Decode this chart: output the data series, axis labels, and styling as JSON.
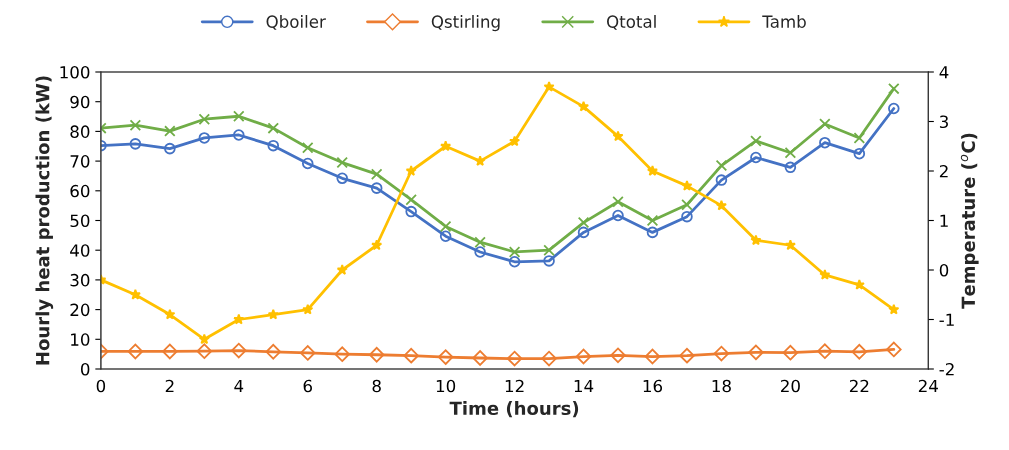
{
  "chart_data": {
    "type": "line",
    "xlabel": "Time (hours)",
    "ylabel": "Hourly heat production (kW)",
    "y2label": "Temperature ($^{o}$C)",
    "x": [
      0,
      1,
      2,
      3,
      4,
      5,
      6,
      7,
      8,
      9,
      10,
      11,
      12,
      13,
      14,
      15,
      16,
      17,
      18,
      19,
      20,
      21,
      22,
      23
    ],
    "xlim": [
      0,
      24
    ],
    "xticks": [
      0,
      2,
      4,
      6,
      8,
      10,
      12,
      14,
      16,
      18,
      20,
      22,
      24
    ],
    "ylim": [
      0,
      100
    ],
    "yticks": [
      0,
      10,
      20,
      30,
      40,
      50,
      60,
      70,
      80,
      90,
      100
    ],
    "y2lim": [
      -2,
      4
    ],
    "y2ticks": [
      -2,
      -1,
      0,
      1,
      2,
      3,
      4
    ],
    "grid": false,
    "legend": "top",
    "series": [
      {
        "name": "Qboiler",
        "color": "#4472c4",
        "marker": "circle",
        "values": [
          75.2,
          75.8,
          74.2,
          77.8,
          78.8,
          75.2,
          69.2,
          64.2,
          60.9,
          53,
          44.7,
          39.4,
          36.1,
          36.4,
          46,
          51.7,
          46,
          51.3,
          63.6,
          71.2,
          67.9,
          76.2,
          72.5,
          87.7
        ]
      },
      {
        "name": "Qstirling",
        "color": "#ed7d31",
        "marker": "diamond",
        "values": [
          5.9,
          5.9,
          5.9,
          6.0,
          6.2,
          5.8,
          5.4,
          5.0,
          4.8,
          4.5,
          4.0,
          3.7,
          3.5,
          3.5,
          4.2,
          4.6,
          4.2,
          4.5,
          5.2,
          5.6,
          5.5,
          6.0,
          5.8,
          6.6
        ]
      },
      {
        "name": "Qtotal",
        "color": "#70ad47",
        "marker": "cross",
        "values": [
          81.1,
          82.1,
          80.1,
          84.1,
          85.1,
          81.1,
          74.5,
          69.5,
          65.6,
          57,
          48,
          42.7,
          39.4,
          40,
          49.3,
          56.3,
          50,
          55.3,
          68.5,
          76.8,
          72.8,
          82.5,
          77.8,
          94.4
        ]
      },
      {
        "name": "Tamb",
        "color": "#ffc000",
        "marker": "star",
        "axis": "y2",
        "values": [
          -0.2,
          -0.5,
          -0.9,
          -1.4,
          -1.0,
          -0.9,
          -0.8,
          0.0,
          0.5,
          2.0,
          2.5,
          2.2,
          2.6,
          3.7,
          3.3,
          2.7,
          2.0,
          1.7,
          1.3,
          0.6,
          0.5,
          -0.1,
          -0.3,
          -0.8
        ]
      }
    ]
  }
}
